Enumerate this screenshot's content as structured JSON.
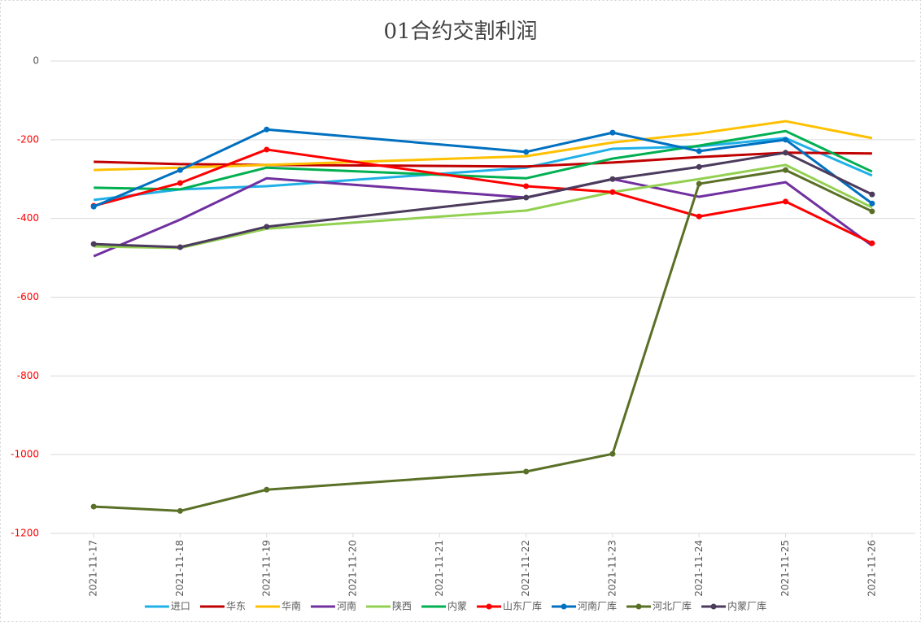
{
  "chart_data": {
    "type": "line",
    "title": "01合约交割利润",
    "x": [
      "2021-11-17",
      "2021-11-18",
      "2021-11-19",
      "2021-11-22",
      "2021-11-23",
      "2021-11-24",
      "2021-11-25",
      "2021-11-26"
    ],
    "xticks": [
      "2021-11-17",
      "2021-11-18",
      "2021-11-19",
      "2021-11-20",
      "2021-11-21",
      "2021-11-22",
      "2021-11-23",
      "2021-11-24",
      "2021-11-25",
      "2021-11-26"
    ],
    "ylim": [
      -1200,
      0
    ],
    "yticks": [
      0,
      -200,
      -400,
      -600,
      -800,
      -1000,
      -1200
    ],
    "grid": true,
    "legend": "bottom",
    "series": [
      {
        "name": "进口",
        "color": "#1fb0e8",
        "markers": false,
        "values": [
          -353,
          -326,
          -318,
          -271,
          -223,
          -217,
          -196,
          -291
        ]
      },
      {
        "name": "华东",
        "color": "#c00000",
        "markers": false,
        "values": [
          -256,
          -262,
          -264,
          -268,
          -258,
          -244,
          -233,
          -235
        ]
      },
      {
        "name": "华南",
        "color": "#ffc000",
        "markers": false,
        "values": [
          -277,
          -271,
          -264,
          -242,
          -207,
          -184,
          -153,
          -196
        ]
      },
      {
        "name": "河南",
        "color": "#7030a0",
        "markers": false,
        "values": [
          -496,
          -403,
          -298,
          -347,
          -300,
          -345,
          -308,
          -469
        ]
      },
      {
        "name": "陕西",
        "color": "#92d050",
        "markers": false,
        "values": [
          -471,
          -475,
          -426,
          -380,
          -333,
          -300,
          -264,
          -372
        ]
      },
      {
        "name": "内蒙",
        "color": "#00b050",
        "markers": false,
        "values": [
          -322,
          -326,
          -271,
          -298,
          -248,
          -215,
          -178,
          -281
        ]
      },
      {
        "name": "山东厂库",
        "color": "#ff0000",
        "markers": true,
        "values": [
          -368,
          -310,
          -225,
          -318,
          -333,
          -395,
          -357,
          -463
        ]
      },
      {
        "name": "河南厂库",
        "color": "#0070c0",
        "markers": true,
        "values": [
          -370,
          -277,
          -174,
          -231,
          -182,
          -229,
          -200,
          -362
        ]
      },
      {
        "name": "河北厂库",
        "color": "#5a7027",
        "markers": true,
        "values": [
          -1132,
          -1143,
          -1089,
          -1043,
          -998,
          -312,
          -277,
          -382
        ]
      },
      {
        "name": "内蒙厂库",
        "color": "#4b3b5c",
        "markers": true,
        "values": [
          -465,
          -473,
          -421,
          -347,
          -300,
          -269,
          -233,
          -339
        ]
      }
    ]
  }
}
